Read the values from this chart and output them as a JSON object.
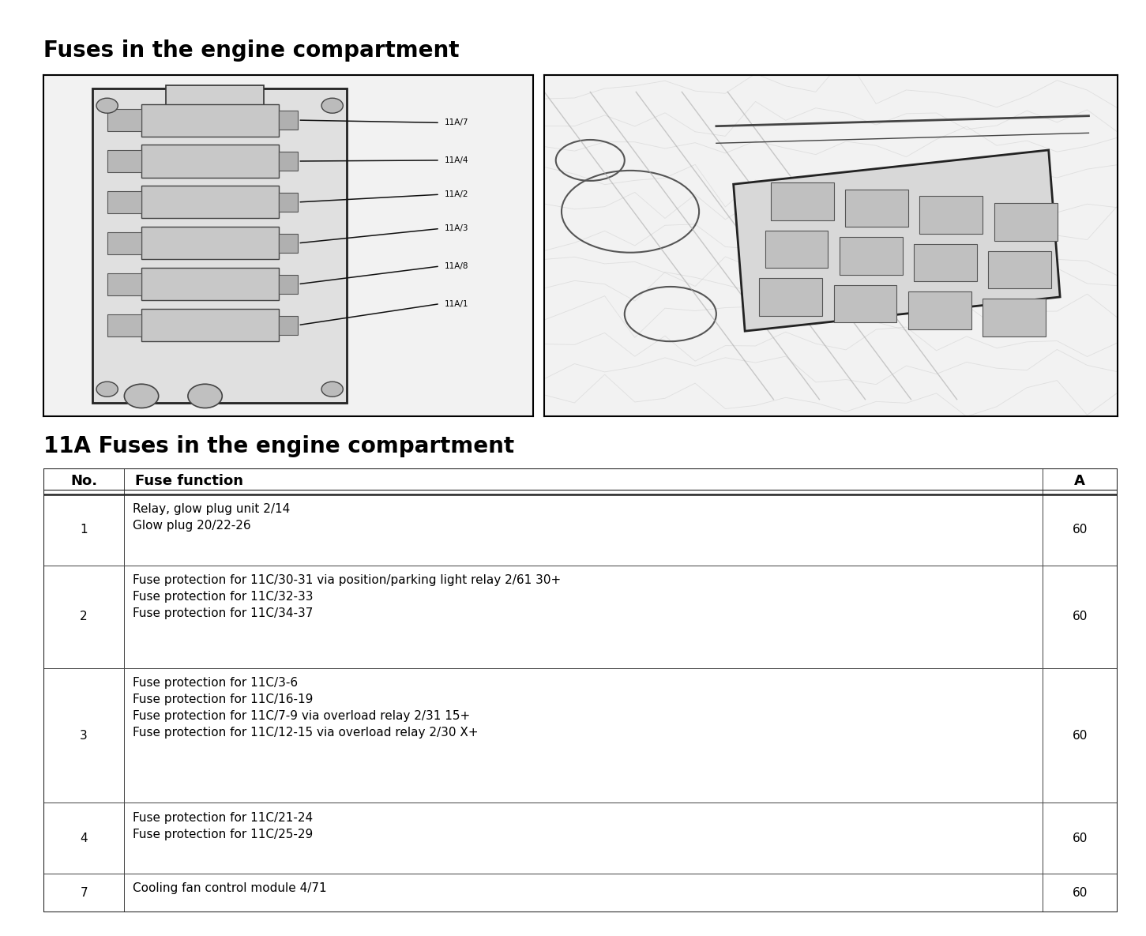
{
  "title1": "Fuses in the engine compartment",
  "title2": "11A Fuses in the engine compartment",
  "background_color": "#ffffff",
  "table_header": [
    "No.",
    "Fuse function",
    "A"
  ],
  "table_rows": [
    {
      "no": "1",
      "function": "Relay, glow plug unit 2/14\nGlow plug 20/22-26",
      "amp": "60",
      "lines": 2
    },
    {
      "no": "2",
      "function": "Fuse protection for 11C/30-31 via position/parking light relay 2/61 30+\nFuse protection for 11C/32-33\nFuse protection for 11C/34-37",
      "amp": "60",
      "lines": 3
    },
    {
      "no": "3",
      "function": "Fuse protection for 11C/3-6\nFuse protection for 11C/16-19\nFuse protection for 11C/7-9 via overload relay 2/31 15+\nFuse protection for 11C/12-15 via overload relay 2/30 X+",
      "amp": "60",
      "lines": 4
    },
    {
      "no": "4",
      "function": "Fuse protection for 11C/21-24\nFuse protection for 11C/25-29",
      "amp": "60",
      "lines": 2
    },
    {
      "no": "7",
      "function": "Cooling fan control module 4/71",
      "amp": "60",
      "lines": 1
    }
  ],
  "title1_fontsize": 20,
  "title2_fontsize": 20,
  "header_fontsize": 13,
  "cell_fontsize": 11,
  "wire_labels": [
    "11A/7",
    "11A/4",
    "11A/2",
    "11A/3",
    "11A/8",
    "11A/1"
  ]
}
